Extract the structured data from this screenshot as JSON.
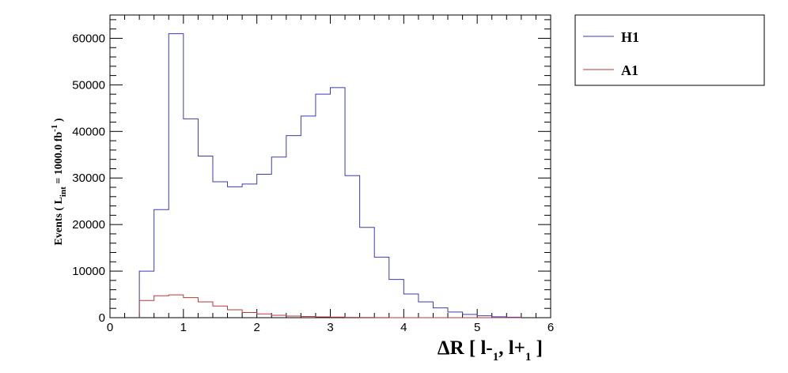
{
  "chart_data": {
    "type": "histogram",
    "xlabel": {
      "prefix": "ΔR [ l-",
      "sub1": "1",
      "mid": ", l+",
      "sub2": "1",
      "suffix": " ]"
    },
    "ylabel": {
      "prefix": "Events  ( L",
      "sub": "int",
      "mid": " = 1000.0 fb",
      "sup": "-1",
      "suffix": " )"
    },
    "xlim": [
      0,
      6
    ],
    "ylim": [
      0,
      65000
    ],
    "x_ticks": [
      0,
      1,
      2,
      3,
      4,
      5,
      6
    ],
    "y_ticks": [
      0,
      10000,
      20000,
      30000,
      40000,
      50000,
      60000
    ],
    "bin_edges": [
      0.4,
      0.6,
      0.8,
      1.0,
      1.2,
      1.4,
      1.6,
      1.8,
      2.0,
      2.2,
      2.4,
      2.6,
      2.8,
      3.0,
      3.2,
      3.4,
      3.6,
      3.8,
      4.0,
      4.2,
      4.4,
      4.6,
      4.8,
      5.0,
      5.2,
      5.4,
      5.6
    ],
    "series": [
      {
        "name": "H1",
        "color": "#3b3bb4",
        "values": [
          10000,
          23200,
          61000,
          42700,
          34700,
          29200,
          28100,
          28700,
          30800,
          34500,
          39100,
          43300,
          48000,
          49400,
          30500,
          19400,
          13000,
          8200,
          5100,
          3400,
          2100,
          1200,
          700,
          400,
          200,
          100
        ]
      },
      {
        "name": "A1",
        "color": "#b43b3b",
        "values": [
          3700,
          4700,
          4900,
          4300,
          3400,
          2500,
          1700,
          1100,
          800,
          500,
          350,
          250,
          180,
          120,
          70,
          40,
          20,
          10,
          5,
          0,
          0,
          0,
          0,
          0,
          0,
          0
        ]
      }
    ],
    "legend_position": "top-right, outside plot"
  }
}
